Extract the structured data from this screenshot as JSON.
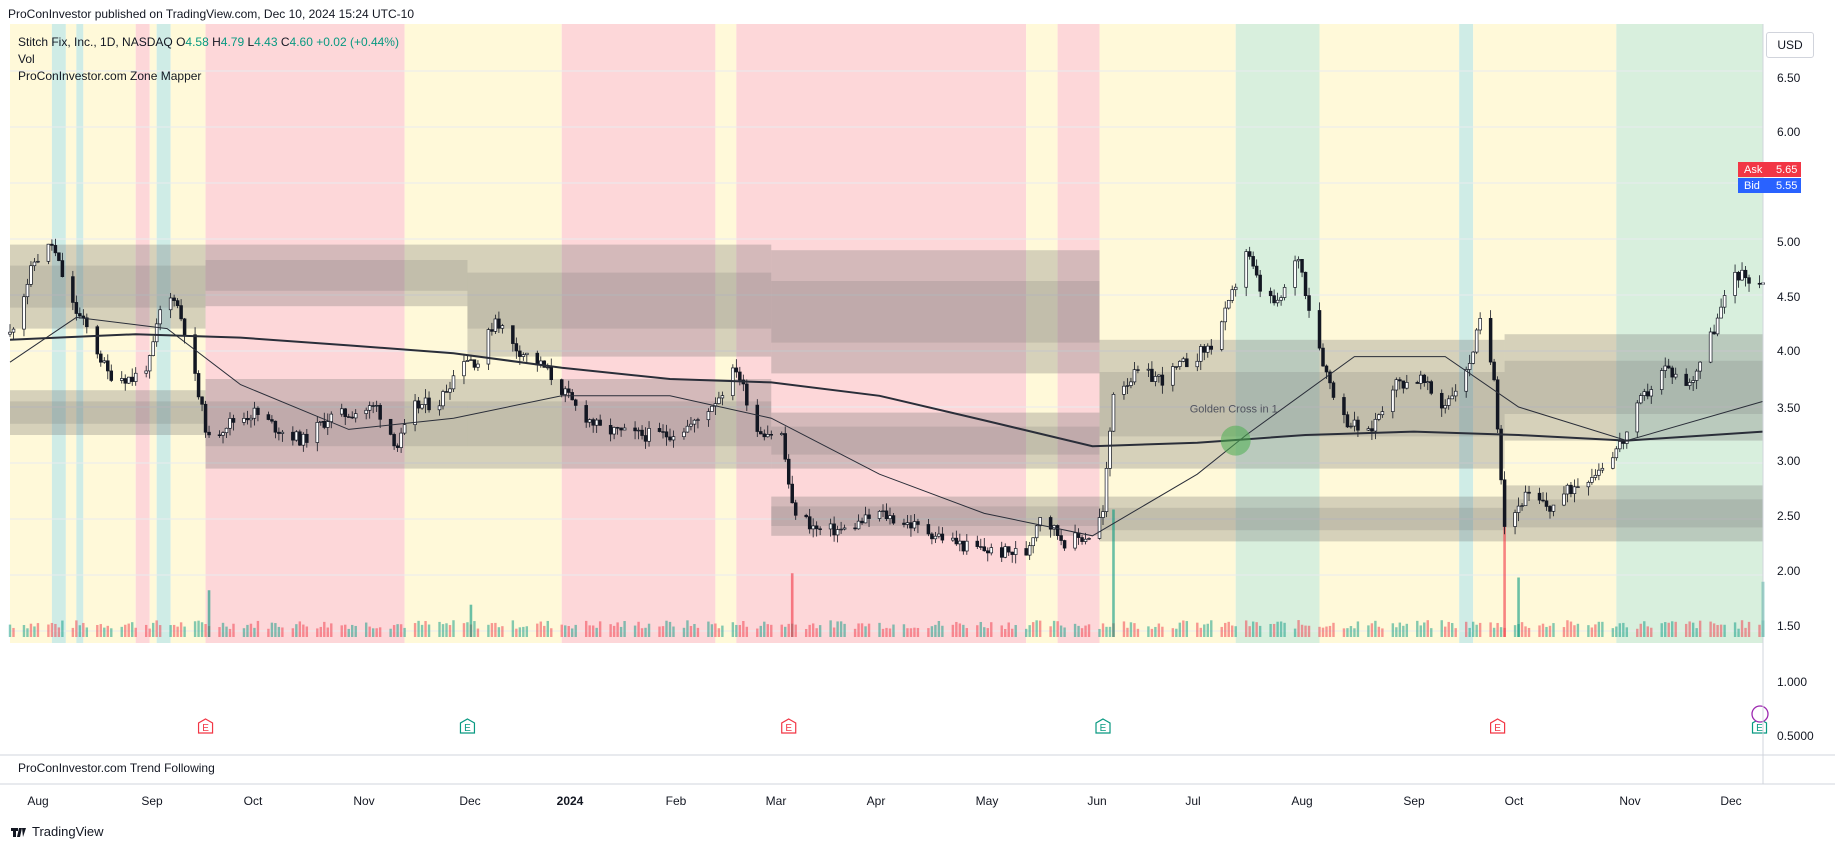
{
  "header": {
    "published": "ProConInvestor published on TradingView.com, Dec 10, 2024 15:24 UTC-10"
  },
  "legend": {
    "symbol": "Stitch Fix, Inc., 1D, NASDAQ",
    "o_label": "O",
    "o": "4.58",
    "h_label": "H",
    "h": "4.79",
    "l_label": "L",
    "l": "4.43",
    "c_label": "C",
    "c": "4.60",
    "change": "+0.02 (+0.44%)",
    "vol": "Vol",
    "indicator": "ProConInvestor.com Zone Mapper"
  },
  "currency_button": "USD",
  "ask": {
    "label": "Ask",
    "value": "5.65"
  },
  "bid": {
    "label": "Bid",
    "value": "5.55"
  },
  "annotation": "Golden Cross in 1",
  "lower_pane_title": "ProConInvestor.com Trend Following",
  "footer_brand": "TradingView",
  "colors": {
    "up": "#089981",
    "down": "#f23645",
    "red_zone": "#fdd7d9",
    "yellow_zone": "#fff9d9",
    "green_zone": "#d8efdd",
    "teal_zone": "#cfece6",
    "zone_band": "#6a6a6a",
    "ask": "#f23645",
    "bid": "#2962ff",
    "golden_cross": "#4caf50"
  },
  "chart_data": {
    "type": "candlestick",
    "y_ticks": [
      "6.50",
      "6.00",
      "5.50",
      "5.00",
      "4.50",
      "4.00",
      "3.50",
      "3.00",
      "2.50",
      "2.00",
      "1.50",
      "1.000",
      "0.5000"
    ],
    "x_ticks": [
      "Aug",
      "Sep",
      "Oct",
      "Nov",
      "Dec",
      "2024",
      "Feb",
      "Mar",
      "Apr",
      "May",
      "Jun",
      "Jul",
      "Aug",
      "Sep",
      "Oct",
      "Nov",
      "Dec"
    ],
    "ylim": [
      0.45,
      6.75
    ],
    "x_range": [
      "2023-07-27",
      "2024-12-10"
    ],
    "background_zones": [
      {
        "from": "2023-07-27",
        "to": "2023-08-08",
        "color": "yellow_zone"
      },
      {
        "from": "2023-08-08",
        "to": "2023-08-12",
        "color": "teal_zone"
      },
      {
        "from": "2023-08-12",
        "to": "2023-08-15",
        "color": "yellow_zone"
      },
      {
        "from": "2023-08-15",
        "to": "2023-08-17",
        "color": "teal_zone"
      },
      {
        "from": "2023-08-17",
        "to": "2023-09-01",
        "color": "yellow_zone"
      },
      {
        "from": "2023-09-01",
        "to": "2023-09-05",
        "color": "red_zone"
      },
      {
        "from": "2023-09-05",
        "to": "2023-09-07",
        "color": "yellow_zone"
      },
      {
        "from": "2023-09-07",
        "to": "2023-09-11",
        "color": "teal_zone"
      },
      {
        "from": "2023-09-11",
        "to": "2023-09-21",
        "color": "yellow_zone"
      },
      {
        "from": "2023-09-21",
        "to": "2023-11-17",
        "color": "red_zone"
      },
      {
        "from": "2023-11-17",
        "to": "2024-01-01",
        "color": "yellow_zone"
      },
      {
        "from": "2024-01-01",
        "to": "2024-02-14",
        "color": "red_zone"
      },
      {
        "from": "2024-02-14",
        "to": "2024-02-20",
        "color": "yellow_zone"
      },
      {
        "from": "2024-02-20",
        "to": "2024-05-13",
        "color": "red_zone"
      },
      {
        "from": "2024-05-13",
        "to": "2024-05-22",
        "color": "yellow_zone"
      },
      {
        "from": "2024-05-22",
        "to": "2024-06-03",
        "color": "red_zone"
      },
      {
        "from": "2024-06-03",
        "to": "2024-07-12",
        "color": "yellow_zone"
      },
      {
        "from": "2024-07-12",
        "to": "2024-08-05",
        "color": "green_zone"
      },
      {
        "from": "2024-08-05",
        "to": "2024-09-14",
        "color": "yellow_zone"
      },
      {
        "from": "2024-09-14",
        "to": "2024-09-18",
        "color": "teal_zone"
      },
      {
        "from": "2024-09-18",
        "to": "2024-10-29",
        "color": "yellow_zone"
      },
      {
        "from": "2024-10-29",
        "to": "2024-12-10",
        "color": "green_zone"
      }
    ],
    "price_zones": [
      {
        "from": "2023-07-27",
        "to": "2023-09-21",
        "low": 4.2,
        "high": 4.95
      },
      {
        "from": "2023-07-27",
        "to": "2023-09-21",
        "low": 3.25,
        "high": 3.65
      },
      {
        "from": "2023-09-21",
        "to": "2023-12-05",
        "low": 4.4,
        "high": 4.95
      },
      {
        "from": "2023-09-21",
        "to": "2023-12-05",
        "low": 2.95,
        "high": 3.75
      },
      {
        "from": "2023-12-05",
        "to": "2024-03-01",
        "low": 3.95,
        "high": 4.95
      },
      {
        "from": "2023-12-05",
        "to": "2024-03-01",
        "low": 2.95,
        "high": 3.75
      },
      {
        "from": "2024-03-01",
        "to": "2024-06-03",
        "low": 3.8,
        "high": 4.9
      },
      {
        "from": "2024-03-01",
        "to": "2024-06-03",
        "low": 2.95,
        "high": 3.45
      },
      {
        "from": "2024-03-01",
        "to": "2024-06-03",
        "low": 2.35,
        "high": 2.7
      },
      {
        "from": "2024-06-03",
        "to": "2024-09-27",
        "low": 2.95,
        "high": 4.1
      },
      {
        "from": "2024-06-03",
        "to": "2024-09-27",
        "low": 2.3,
        "high": 2.7
      },
      {
        "from": "2024-09-27",
        "to": "2024-12-10",
        "low": 3.2,
        "high": 4.15
      },
      {
        "from": "2024-09-27",
        "to": "2024-12-10",
        "low": 2.3,
        "high": 2.8
      }
    ],
    "series": [
      {
        "name": "price",
        "points": [
          [
            "2023-07-27",
            4.15
          ],
          [
            "2023-08-03",
            4.8
          ],
          [
            "2023-08-08",
            4.95
          ],
          [
            "2023-08-14",
            4.4
          ],
          [
            "2023-08-18",
            4.2
          ],
          [
            "2023-08-24",
            3.8
          ],
          [
            "2023-08-31",
            3.75
          ],
          [
            "2023-09-05",
            3.9
          ],
          [
            "2023-09-08",
            4.35
          ],
          [
            "2023-09-12",
            4.5
          ],
          [
            "2023-09-15",
            4.2
          ],
          [
            "2023-09-19",
            3.6
          ],
          [
            "2023-09-22",
            3.2
          ],
          [
            "2023-09-27",
            3.35
          ],
          [
            "2023-10-05",
            3.45
          ],
          [
            "2023-10-12",
            3.3
          ],
          [
            "2023-10-19",
            3.2
          ],
          [
            "2023-10-26",
            3.4
          ],
          [
            "2023-11-02",
            3.45
          ],
          [
            "2023-11-09",
            3.5
          ],
          [
            "2023-11-15",
            3.15
          ],
          [
            "2023-11-20",
            3.5
          ],
          [
            "2023-11-27",
            3.55
          ],
          [
            "2023-12-04",
            3.95
          ],
          [
            "2023-12-08",
            3.9
          ],
          [
            "2023-12-13",
            4.3
          ],
          [
            "2023-12-18",
            4.05
          ],
          [
            "2023-12-27",
            3.85
          ],
          [
            "2024-01-05",
            3.5
          ],
          [
            "2024-01-12",
            3.3
          ],
          [
            "2024-01-22",
            3.25
          ],
          [
            "2024-01-31",
            3.25
          ],
          [
            "2024-02-08",
            3.35
          ],
          [
            "2024-02-15",
            3.6
          ],
          [
            "2024-02-20",
            3.85
          ],
          [
            "2024-02-26",
            3.3
          ],
          [
            "2024-03-04",
            3.25
          ],
          [
            "2024-03-07",
            2.6
          ],
          [
            "2024-03-14",
            2.4
          ],
          [
            "2024-03-22",
            2.4
          ],
          [
            "2024-04-01",
            2.55
          ],
          [
            "2024-04-10",
            2.45
          ],
          [
            "2024-04-18",
            2.35
          ],
          [
            "2024-04-26",
            2.25
          ],
          [
            "2024-05-06",
            2.2
          ],
          [
            "2024-05-13",
            2.2
          ],
          [
            "2024-05-17",
            2.55
          ],
          [
            "2024-05-24",
            2.3
          ],
          [
            "2024-05-31",
            2.35
          ],
          [
            "2024-06-04",
            2.55
          ],
          [
            "2024-06-07",
            3.65
          ],
          [
            "2024-06-14",
            3.8
          ],
          [
            "2024-06-21",
            3.75
          ],
          [
            "2024-06-28",
            3.9
          ],
          [
            "2024-07-05",
            4.05
          ],
          [
            "2024-07-10",
            4.4
          ],
          [
            "2024-07-15",
            4.9
          ],
          [
            "2024-07-19",
            4.55
          ],
          [
            "2024-07-24",
            4.4
          ],
          [
            "2024-07-30",
            4.85
          ],
          [
            "2024-08-02",
            4.4
          ],
          [
            "2024-08-07",
            3.8
          ],
          [
            "2024-08-12",
            3.4
          ],
          [
            "2024-08-19",
            3.25
          ],
          [
            "2024-08-26",
            3.7
          ],
          [
            "2024-09-03",
            3.75
          ],
          [
            "2024-09-09",
            3.5
          ],
          [
            "2024-09-16",
            3.8
          ],
          [
            "2024-09-20",
            4.25
          ],
          [
            "2024-09-24",
            3.8
          ],
          [
            "2024-09-27",
            2.45
          ],
          [
            "2024-10-03",
            2.7
          ],
          [
            "2024-10-10",
            2.6
          ],
          [
            "2024-10-17",
            2.8
          ],
          [
            "2024-10-24",
            2.95
          ],
          [
            "2024-10-31",
            3.2
          ],
          [
            "2024-11-05",
            3.55
          ],
          [
            "2024-11-12",
            3.85
          ],
          [
            "2024-11-19",
            3.7
          ],
          [
            "2024-11-26",
            4.2
          ],
          [
            "2024-12-02",
            4.7
          ],
          [
            "2024-12-10",
            4.6
          ]
        ]
      },
      {
        "name": "ma_long",
        "points": [
          [
            "2023-07-27",
            4.1
          ],
          [
            "2023-09-01",
            4.15
          ],
          [
            "2023-10-01",
            4.12
          ],
          [
            "2023-11-01",
            4.05
          ],
          [
            "2023-12-01",
            3.98
          ],
          [
            "2024-01-01",
            3.85
          ],
          [
            "2024-02-01",
            3.75
          ],
          [
            "2024-03-01",
            3.72
          ],
          [
            "2024-04-01",
            3.6
          ],
          [
            "2024-05-01",
            3.38
          ],
          [
            "2024-06-01",
            3.15
          ],
          [
            "2024-07-01",
            3.18
          ],
          [
            "2024-08-01",
            3.25
          ],
          [
            "2024-09-01",
            3.28
          ],
          [
            "2024-10-01",
            3.25
          ],
          [
            "2024-11-01",
            3.2
          ],
          [
            "2024-12-10",
            3.28
          ]
        ]
      },
      {
        "name": "ma_short",
        "points": [
          [
            "2023-07-27",
            3.9
          ],
          [
            "2023-08-15",
            4.3
          ],
          [
            "2023-09-10",
            4.2
          ],
          [
            "2023-10-01",
            3.7
          ],
          [
            "2023-11-01",
            3.3
          ],
          [
            "2023-12-01",
            3.4
          ],
          [
            "2024-01-01",
            3.6
          ],
          [
            "2024-02-01",
            3.6
          ],
          [
            "2024-03-01",
            3.4
          ],
          [
            "2024-04-01",
            2.9
          ],
          [
            "2024-05-01",
            2.55
          ],
          [
            "2024-06-01",
            2.35
          ],
          [
            "2024-07-01",
            2.9
          ],
          [
            "2024-07-15",
            3.25
          ],
          [
            "2024-08-15",
            3.95
          ],
          [
            "2024-09-10",
            3.95
          ],
          [
            "2024-10-01",
            3.5
          ],
          [
            "2024-11-01",
            3.2
          ],
          [
            "2024-12-10",
            3.55
          ]
        ]
      },
      {
        "name": "volume",
        "spikes": [
          [
            "2023-09-22",
            0.55
          ],
          [
            "2023-12-06",
            0.38
          ],
          [
            "2024-03-07",
            0.75
          ],
          [
            "2024-06-07",
            1.5
          ],
          [
            "2024-09-27",
            1.7
          ],
          [
            "2024-10-01",
            0.7
          ],
          [
            "2024-12-10",
            0.65
          ]
        ]
      }
    ],
    "earnings_markers": [
      "2023-09-21",
      "2023-12-05",
      "2024-03-06",
      "2024-06-04",
      "2024-09-25",
      "2024-12-09"
    ],
    "golden_cross": {
      "date": "2024-07-12",
      "value": 3.2
    }
  }
}
